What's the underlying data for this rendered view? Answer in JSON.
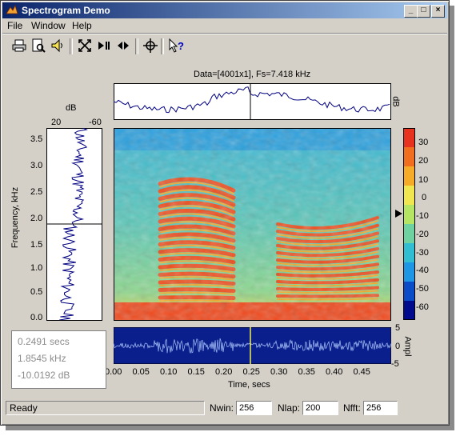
{
  "window": {
    "title": "Spectrogram Demo",
    "minimize": "_",
    "maximize": "□",
    "close": "×"
  },
  "menu": [
    "File",
    "Window",
    "Help"
  ],
  "toolbar": [
    "print-icon",
    "print-preview-icon",
    "speaker-icon",
    "zoom-extents-icon",
    "play-pause-icon",
    "step-icon",
    "crosshair-icon",
    "help-pointer-icon"
  ],
  "top_panel": {
    "title": "Data=[4001x1], Fs=7.418 kHz",
    "ylabel": "dB"
  },
  "left_panel": {
    "xlabel": "dB",
    "xticks": [
      "20",
      "-60"
    ],
    "ylabel": "Frequency, kHz",
    "yticks": [
      "3.5",
      "3.0",
      "2.5",
      "2.0",
      "1.5",
      "1.0",
      "0.5",
      "0.0"
    ]
  },
  "colorbar": {
    "ticks": [
      "30",
      "20",
      "10",
      "0",
      "-10",
      "-20",
      "-30",
      "-40",
      "-50",
      "-60"
    ],
    "colors": [
      "#e6321e",
      "#f06e1e",
      "#f5aa28",
      "#f0e650",
      "#b4e664",
      "#6ed2a0",
      "#32bed2",
      "#1e96e6",
      "#0a4bc8",
      "#000a8c"
    ]
  },
  "bottom_panel": {
    "yticks": [
      "5",
      "0",
      "-5"
    ],
    "ylabel": "Ampl",
    "xticks": [
      "0.00",
      "0.05",
      "0.10",
      "0.15",
      "0.20",
      "0.25",
      "0.30",
      "0.35",
      "0.40",
      "0.45"
    ],
    "xlabel": "Time, secs"
  },
  "readout": {
    "time": "0.2491 secs",
    "freq": "1.8545 kHz",
    "level": "-10.0192 dB"
  },
  "status": "Ready",
  "params": [
    {
      "label": "Nwin:",
      "value": "256"
    },
    {
      "label": "Nlap:",
      "value": "200"
    },
    {
      "label": "Nfft:",
      "value": "256"
    }
  ]
}
